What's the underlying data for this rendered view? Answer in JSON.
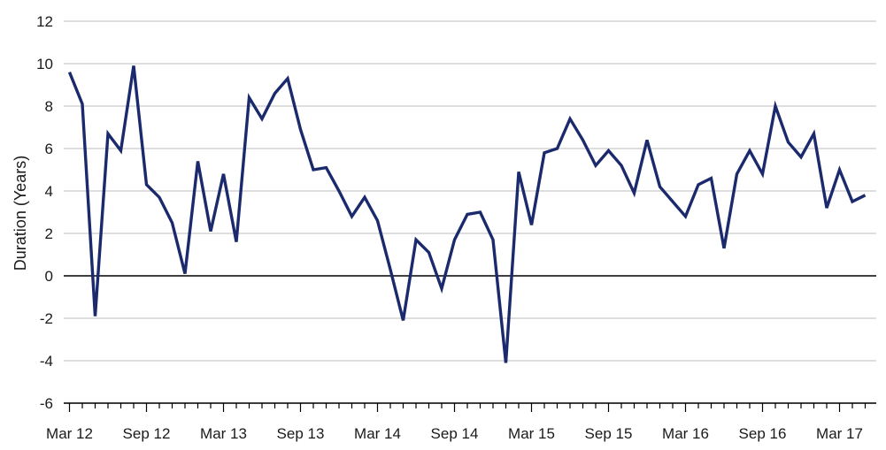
{
  "chart_data": {
    "type": "line",
    "title": "",
    "xlabel": "",
    "ylabel": "Duration (Years)",
    "ylim": [
      -6,
      12
    ],
    "yticks": [
      -6,
      -4,
      -2,
      0,
      2,
      4,
      6,
      8,
      10,
      12
    ],
    "grid": true,
    "legend": "none",
    "x_tick_labels": [
      "Mar 12",
      "Sep 12",
      "Mar 13",
      "Sep 13",
      "Mar 14",
      "Sep 14",
      "Mar 15",
      "Sep 15",
      "Mar 16",
      "Sep 16",
      "Mar 17"
    ],
    "x_start": "Mar 12",
    "frequency": "monthly",
    "series": [
      {
        "name": "",
        "color": "#1a2a6c",
        "values": [
          9.6,
          8.1,
          -1.9,
          6.7,
          5.9,
          9.9,
          4.3,
          3.7,
          2.5,
          0.1,
          5.4,
          2.1,
          4.8,
          1.6,
          8.4,
          7.4,
          8.6,
          9.3,
          6.9,
          5.0,
          5.1,
          4.0,
          2.8,
          3.7,
          2.6,
          0.3,
          -2.1,
          1.7,
          1.1,
          -0.6,
          1.7,
          2.9,
          3.0,
          1.7,
          -4.1,
          4.9,
          2.4,
          5.8,
          6.0,
          7.4,
          6.4,
          5.2,
          5.9,
          5.2,
          3.9,
          6.4,
          4.2,
          3.5,
          2.8,
          4.3,
          4.6,
          1.3,
          4.8,
          5.9,
          4.8,
          8.0,
          6.3,
          5.6,
          6.7,
          3.2,
          5.0,
          3.5,
          3.8
        ]
      }
    ],
    "zero_line_color": "#000000",
    "grid_color": "#c9c9c9"
  }
}
